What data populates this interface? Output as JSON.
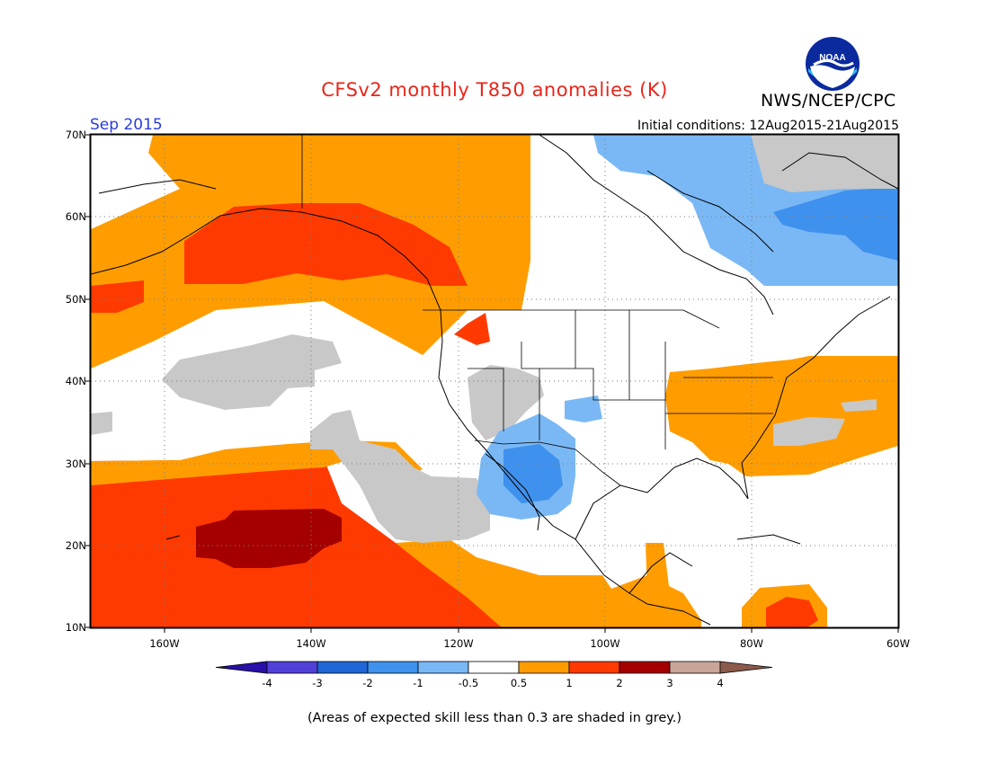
{
  "header": {
    "title": "CFSv2 monthly T850 anomalies (K)",
    "agency": "NWS/NCEP/CPC",
    "valid_month": "Sep 2015",
    "initial_conditions": "Initial conditions: 12Aug2015-21Aug2015",
    "logo_text": "NOAA"
  },
  "map": {
    "lat_labels": [
      "70N",
      "60N",
      "50N",
      "40N",
      "30N",
      "20N",
      "10N"
    ],
    "lon_labels": [
      "160W",
      "140W",
      "120W",
      "100W",
      "80W",
      "60W"
    ]
  },
  "legend": {
    "ticks": [
      "-4",
      "-3",
      "-2",
      "-1",
      "-0.5",
      "0.5",
      "1",
      "2",
      "3",
      "4"
    ],
    "colors": [
      "#2a0fa8",
      "#5040d8",
      "#1f66d6",
      "#3f91ee",
      "#7ab8f5",
      "#ffffff",
      "#ff9d00",
      "#ff3a00",
      "#a50000",
      "#c9a597",
      "#8b5a4a"
    ],
    "grey": "#c8c8c8"
  },
  "footnote": "(Areas of expected skill less than 0.3 are shaded in grey.)"
}
